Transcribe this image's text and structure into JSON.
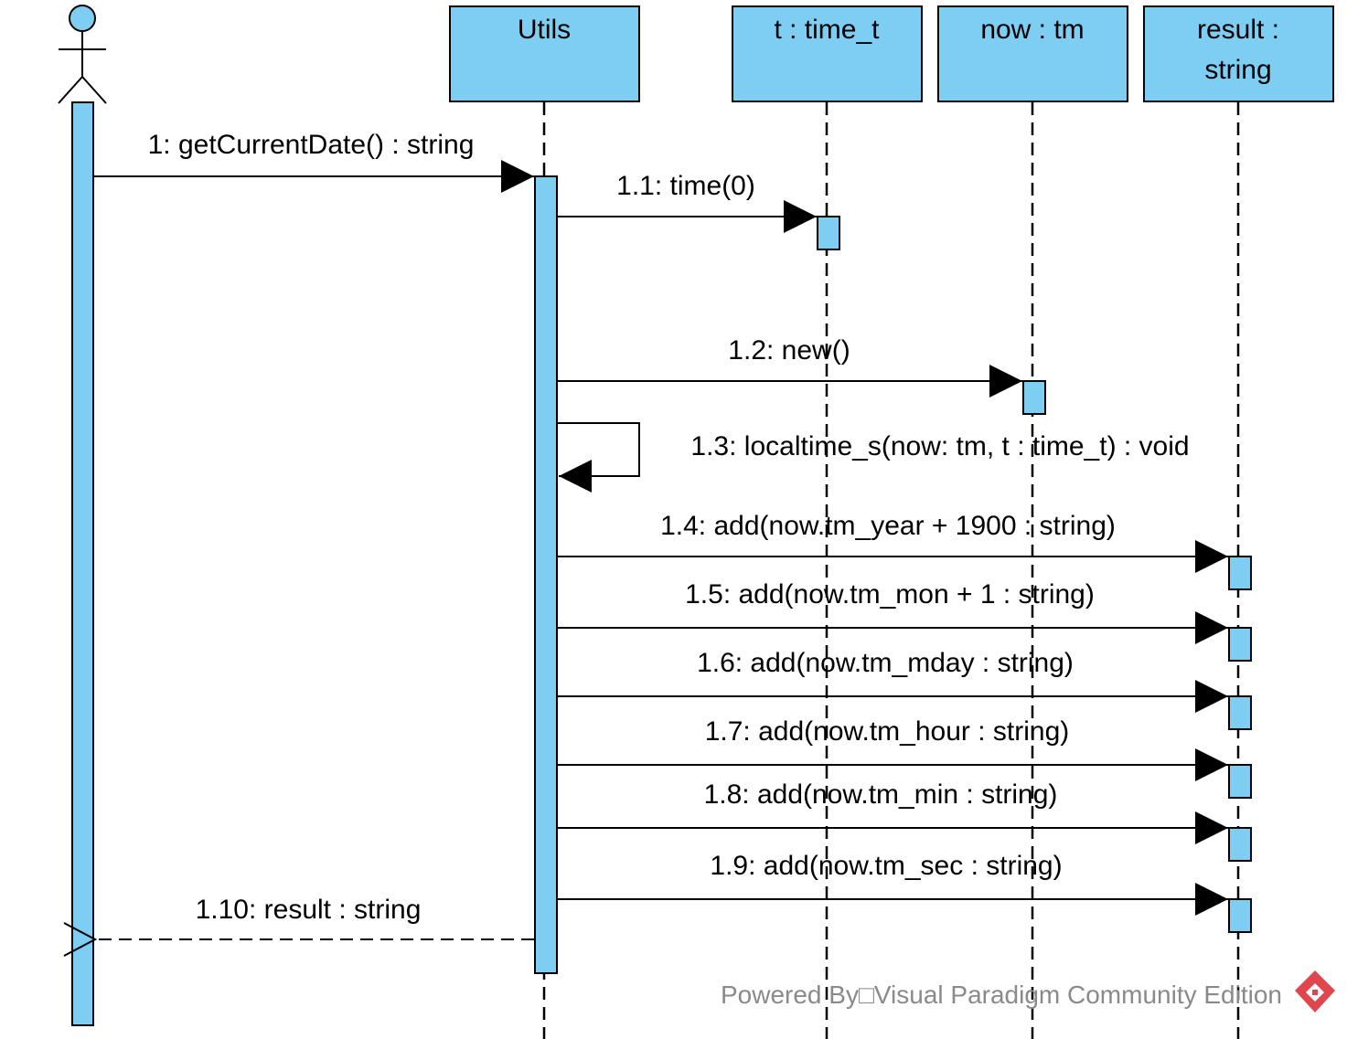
{
  "diagram": {
    "type": "sequence",
    "colors": {
      "fill": "#7ecef4",
      "stroke": "#000000",
      "watermark": "#8a8a8a",
      "logo": "#e0464e"
    },
    "actor": {
      "name": ""
    },
    "lifelines": [
      {
        "id": "utils",
        "line1": "Utils",
        "line2": ""
      },
      {
        "id": "t",
        "line1": "t : time_t",
        "line2": ""
      },
      {
        "id": "now",
        "line1": "now : tm",
        "line2": ""
      },
      {
        "id": "result",
        "line1": "result :",
        "line2": "string"
      }
    ],
    "messages": [
      {
        "num": "1",
        "label": "1: getCurrentDate() : string",
        "from": "actor",
        "to": "utils",
        "kind": "sync"
      },
      {
        "num": "1.1",
        "label": "1.1: time(0)",
        "from": "utils",
        "to": "t",
        "kind": "sync"
      },
      {
        "num": "1.2",
        "label": "1.2: new()",
        "from": "utils",
        "to": "now",
        "kind": "create"
      },
      {
        "num": "1.3",
        "label": "1.3: localtime_s(now: tm, t : time_t) : void",
        "from": "utils",
        "to": "utils",
        "kind": "self"
      },
      {
        "num": "1.4",
        "label": "1.4: add(now.tm_year + 1900 : string)",
        "from": "utils",
        "to": "result",
        "kind": "sync"
      },
      {
        "num": "1.5",
        "label": "1.5: add(now.tm_mon + 1 : string)",
        "from": "utils",
        "to": "result",
        "kind": "sync"
      },
      {
        "num": "1.6",
        "label": "1.6: add(now.tm_mday : string)",
        "from": "utils",
        "to": "result",
        "kind": "sync"
      },
      {
        "num": "1.7",
        "label": "1.7: add(now.tm_hour : string)",
        "from": "utils",
        "to": "result",
        "kind": "sync"
      },
      {
        "num": "1.8",
        "label": "1.8: add(now.tm_min : string)",
        "from": "utils",
        "to": "result",
        "kind": "sync"
      },
      {
        "num": "1.9",
        "label": "1.9: add(now.tm_sec : string)",
        "from": "utils",
        "to": "result",
        "kind": "sync"
      },
      {
        "num": "1.10",
        "label": "1.10: result : string",
        "from": "utils",
        "to": "actor",
        "kind": "return"
      }
    ]
  },
  "watermark": {
    "text": "Powered By□Visual Paradigm Community Edition",
    "logo_icon": "visual-paradigm-logo-icon"
  }
}
